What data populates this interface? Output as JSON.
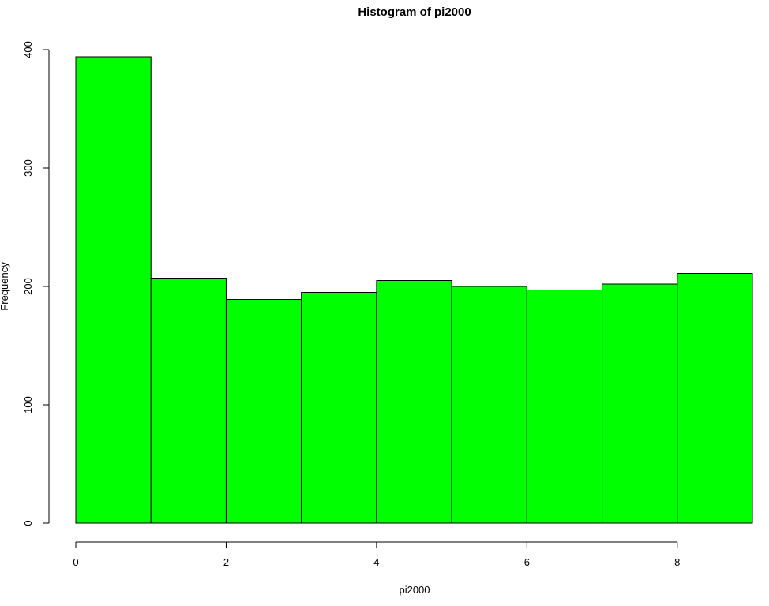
{
  "chart_data": {
    "type": "bar",
    "title": "Histogram of pi2000",
    "xlabel": "pi2000",
    "ylabel": "Frequency",
    "bin_edges": [
      0,
      1,
      2,
      3,
      4,
      5,
      6,
      7,
      8,
      9
    ],
    "values": [
      394,
      207,
      189,
      195,
      205,
      200,
      197,
      202,
      211
    ],
    "xlim": [
      0,
      9
    ],
    "ylim": [
      0,
      400
    ],
    "x_ticks": [
      0,
      2,
      4,
      6,
      8
    ],
    "y_ticks": [
      0,
      100,
      200,
      300,
      400
    ],
    "x_tick_labels": [
      "0",
      "2",
      "4",
      "6",
      "8"
    ],
    "y_tick_labels": [
      "0",
      "100",
      "200",
      "300",
      "400"
    ],
    "bar_color": "#00ff00",
    "grid": false
  }
}
